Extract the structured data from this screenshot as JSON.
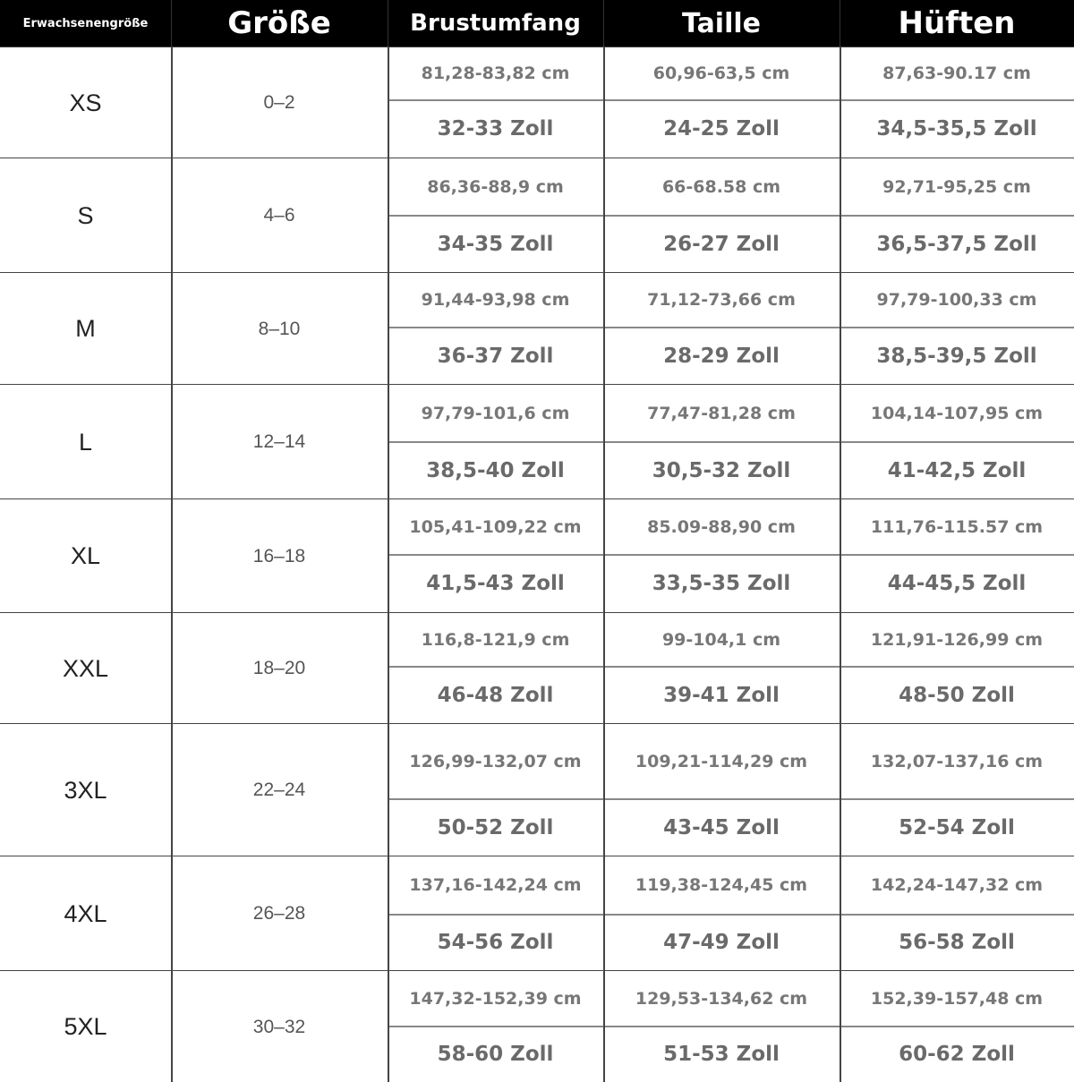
{
  "header": {
    "col_adult": "Erwachsenengröße",
    "col_size": "Größe",
    "col_bust": "Brustumfang",
    "col_waist": "Taille",
    "col_hips": "Hüften"
  },
  "rows": [
    {
      "size": "XS",
      "us": "0–2",
      "bust_cm": "81,28-83,82 cm",
      "bust_in": "32-33 Zoll",
      "waist_cm": "60,96-63,5 cm",
      "waist_in": "24-25 Zoll",
      "hips_cm": "87,63-90.17 cm",
      "hips_in": "34,5-35,5 Zoll"
    },
    {
      "size": "S",
      "us": "4–6",
      "bust_cm": "86,36-88,9 cm",
      "bust_in": "34-35 Zoll",
      "waist_cm": "66-68.58 cm",
      "waist_in": "26-27 Zoll",
      "hips_cm": "92,71-95,25 cm",
      "hips_in": "36,5-37,5 Zoll"
    },
    {
      "size": "M",
      "us": "8–10",
      "bust_cm": "91,44-93,98 cm",
      "bust_in": "36-37 Zoll",
      "waist_cm": "71,12-73,66 cm",
      "waist_in": "28-29 Zoll",
      "hips_cm": "97,79-100,33 cm",
      "hips_in": "38,5-39,5 Zoll"
    },
    {
      "size": "L",
      "us": "12–14",
      "bust_cm": "97,79-101,6 cm",
      "bust_in": "38,5-40 Zoll",
      "waist_cm": "77,47-81,28 cm",
      "waist_in": "30,5-32 Zoll",
      "hips_cm": "104,14-107,95 cm",
      "hips_in": "41-42,5 Zoll"
    },
    {
      "size": "XL",
      "us": "16–18",
      "bust_cm": "105,41-109,22 cm",
      "bust_in": "41,5-43 Zoll",
      "waist_cm": "85.09-88,90 cm",
      "waist_in": "33,5-35 Zoll",
      "hips_cm": "111,76-115.57 cm",
      "hips_in": "44-45,5 Zoll"
    },
    {
      "size": "XXL",
      "us": "18–20",
      "bust_cm": "116,8-121,9 cm",
      "bust_in": "46-48 Zoll",
      "waist_cm": "99-104,1 cm",
      "waist_in": "39-41 Zoll",
      "hips_cm": "121,91-126,99 cm",
      "hips_in": "48-50 Zoll"
    },
    {
      "size": "3XL",
      "us": "22–24",
      "bust_cm": "126,99-132,07 cm",
      "bust_in": "50-52 Zoll",
      "waist_cm": "109,21-114,29 cm",
      "waist_in": "43-45 Zoll",
      "hips_cm": "132,07-137,16 cm",
      "hips_in": "52-54 Zoll"
    },
    {
      "size": "4XL",
      "us": "26–28",
      "bust_cm": "137,16-142,24 cm",
      "bust_in": "54-56 Zoll",
      "waist_cm": "119,38-124,45 cm",
      "waist_in": "47-49 Zoll",
      "hips_cm": "142,24-147,32 cm",
      "hips_in": "56-58 Zoll"
    },
    {
      "size": "5XL",
      "us": "30–32",
      "bust_cm": "147,32-152,39 cm",
      "bust_in": "58-60 Zoll",
      "waist_cm": "129,53-134,62 cm",
      "waist_in": "51-53 Zoll",
      "hips_cm": "152,39-157,48 cm",
      "hips_in": "60-62 Zoll"
    }
  ]
}
